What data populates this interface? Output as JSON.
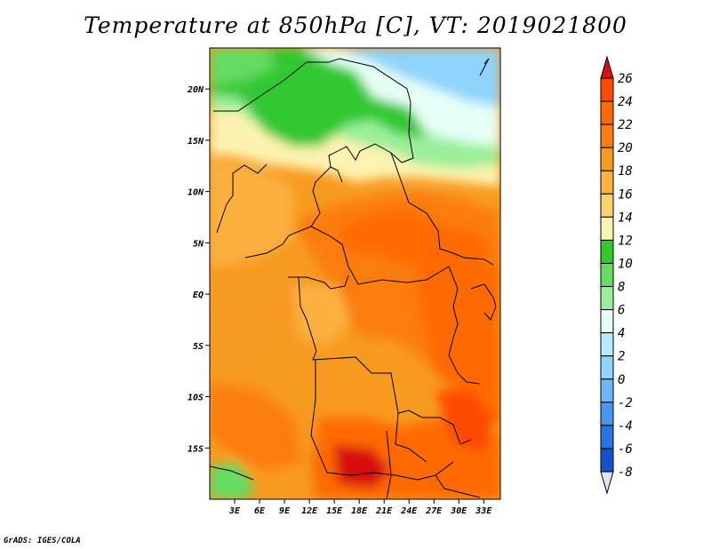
{
  "title": "Temperature at 850hPa [C], VT: 2019021800",
  "credit": "GrADS: IGES/COLA",
  "map": {
    "lon_range": [
      0,
      35
    ],
    "lat_range": [
      -20,
      24
    ],
    "x_ticks": [
      {
        "lon": 3,
        "label": "3E"
      },
      {
        "lon": 6,
        "label": "6E"
      },
      {
        "lon": 9,
        "label": "9E"
      },
      {
        "lon": 12,
        "label": "12E"
      },
      {
        "lon": 15,
        "label": "15E"
      },
      {
        "lon": 18,
        "label": "18E"
      },
      {
        "lon": 21,
        "label": "21E"
      },
      {
        "lon": 24,
        "label": "24E"
      },
      {
        "lon": 27,
        "label": "27E"
      },
      {
        "lon": 30,
        "label": "30E"
      },
      {
        "lon": 33,
        "label": "33E"
      }
    ],
    "y_ticks": [
      {
        "lat": 20,
        "label": "20N"
      },
      {
        "lat": 15,
        "label": "15N"
      },
      {
        "lat": 10,
        "label": "10N"
      },
      {
        "lat": 5,
        "label": "5N"
      },
      {
        "lat": 0,
        "label": "EQ"
      },
      {
        "lat": -5,
        "label": "5S"
      },
      {
        "lat": -10,
        "label": "10S"
      },
      {
        "lat": -15,
        "label": "15S"
      }
    ]
  },
  "colorbar": {
    "levels": [
      "26",
      "24",
      "22",
      "20",
      "18",
      "16",
      "14",
      "12",
      "10",
      "8",
      "6",
      "4",
      "2",
      "0",
      "-2",
      "-4",
      "-6",
      "-8"
    ],
    "colors": [
      "#ff4a00",
      "#ff6a00",
      "#fb7d10",
      "#f89a20",
      "#fbb040",
      "#fbd06e",
      "#fdf3b0",
      "#32c832",
      "#64dc64",
      "#9aef9a",
      "#e6fff7",
      "#b6ecff",
      "#8fd4fc",
      "#6cb6f6",
      "#4a96ee",
      "#2b73e0",
      "#1550c8",
      "#0a2a96",
      "#000080"
    ],
    "max_arrow_color": "#d81010",
    "min_arrow_color": "#e0e4fa"
  }
}
